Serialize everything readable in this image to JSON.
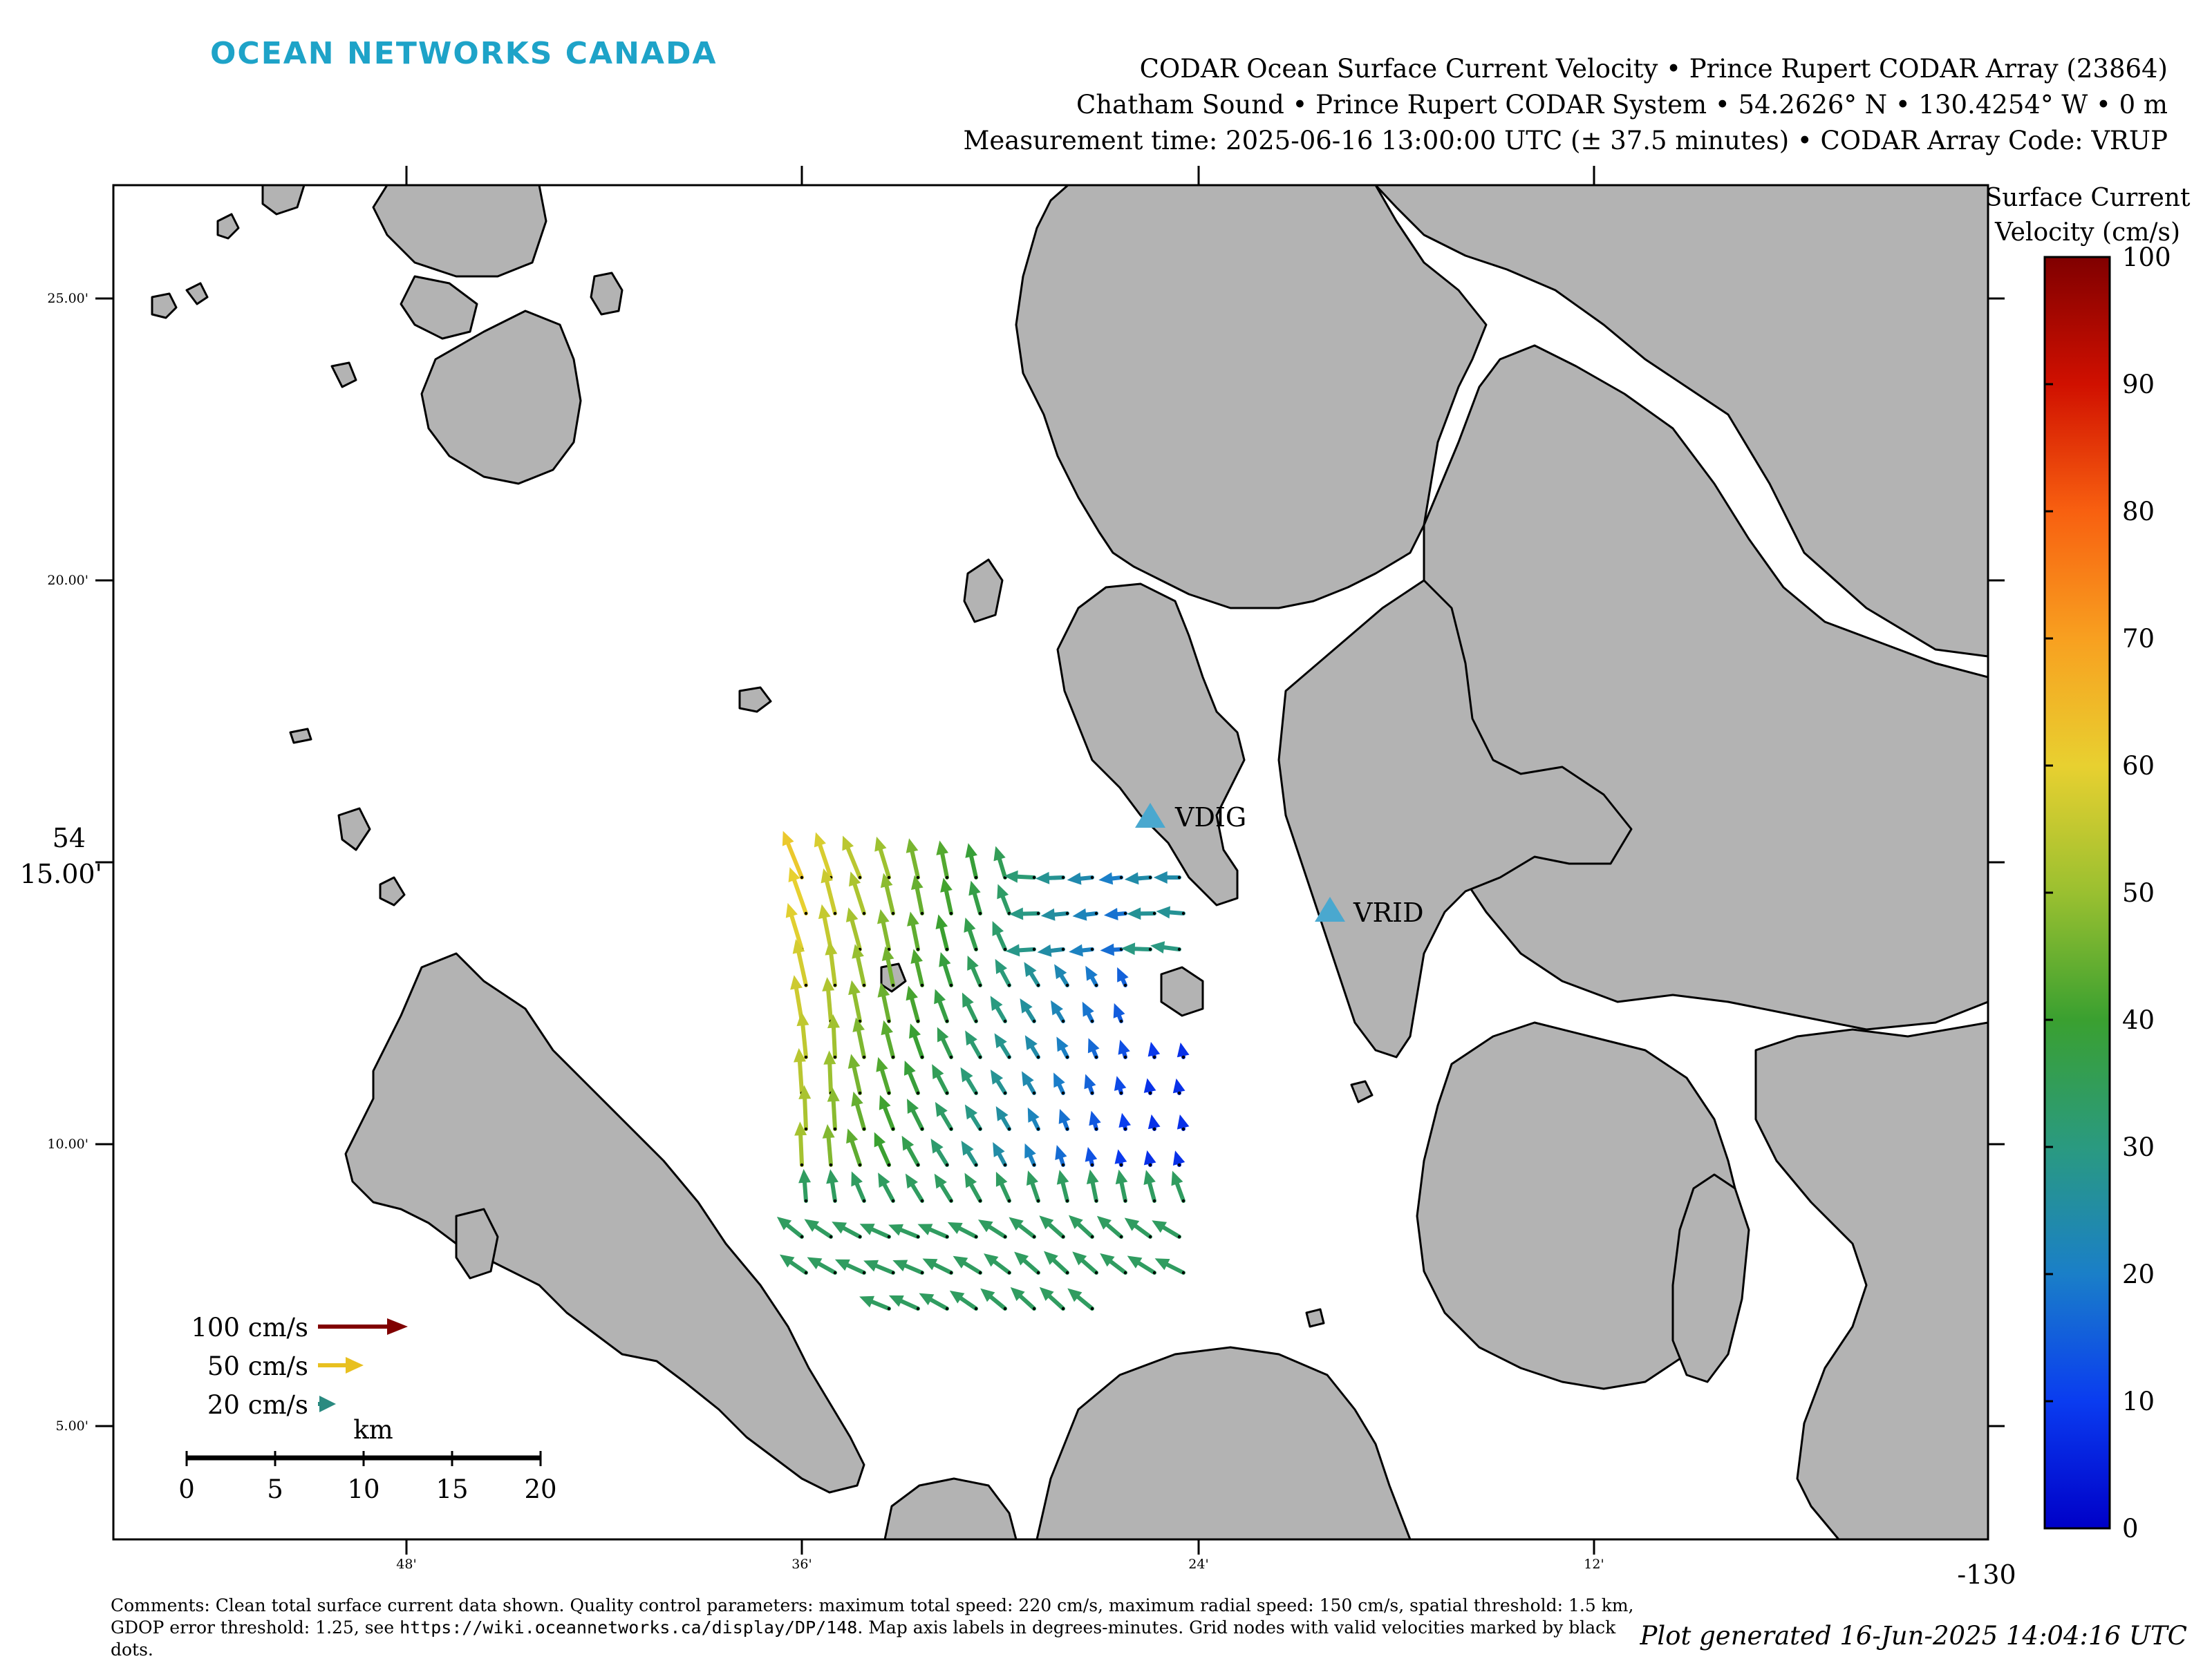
{
  "header": {
    "logo_text": "OCEAN NETWORKS CANADA",
    "title_line1": "CODAR Ocean Surface Current Velocity • Prince Rupert CODAR Array (23864)",
    "title_line2": "Chatham Sound • Prince Rupert CODAR System • 54.2626° N • 130.4254° W • 0 m",
    "title_line3": "Measurement time: 2025-06-16 13:00:00 UTC (± 37.5 minutes) • CODAR Array Code: VRUP"
  },
  "map": {
    "land_color": "#b3b3b3",
    "water_color": "#ffffff",
    "y_tick_labels": [
      "25.00'",
      "20.00'",
      "15.00'",
      "10.00'",
      "5.00'"
    ],
    "y_major_label": "54",
    "x_tick_labels": [
      "48'",
      "36'",
      "24'",
      "12'"
    ],
    "x_major_label": "-130",
    "stations": [
      {
        "code": "VDIG",
        "color": "#4aa8cf"
      },
      {
        "code": "VRID",
        "color": "#4aa8cf"
      }
    ]
  },
  "legend": {
    "arrows": [
      {
        "label": "100 cm/s",
        "speed": 100
      },
      {
        "label": "50 cm/s",
        "speed": 50
      },
      {
        "label": "20 cm/s",
        "speed": 20
      }
    ],
    "scalebar_title": "km",
    "scalebar_ticks": [
      "0",
      "5",
      "10",
      "15",
      "20"
    ]
  },
  "colorbar": {
    "title_line1": "Surface Current",
    "title_line2": "Velocity (cm/s)",
    "ticks": [
      "0",
      "10",
      "20",
      "30",
      "40",
      "50",
      "60",
      "70",
      "80",
      "90",
      "100"
    ],
    "min": 0,
    "max": 100,
    "colormap": [
      "#0000c8",
      "#0a3cf0",
      "#1a7fc8",
      "#2a9a80",
      "#3aa030",
      "#9ac030",
      "#e8d030",
      "#f8a020",
      "#f86010",
      "#d01000",
      "#800000"
    ]
  },
  "footer": {
    "comments_pre": "Comments: Clean total surface current data shown. Quality control parameters: maximum total speed: 220 cm/s, maximum radial speed: 150 cm/s, spatial threshold: 1.5 km, GDOP error threshold: 1.25, see ",
    "comments_url": "https://wiki.oceannetworks.ca/display/DP/148",
    "comments_post": ". Map axis labels in degrees-minutes. Grid nodes with valid velocities marked by black dots.",
    "generated": "Plot generated 16-Jun-2025 14:04:16 UTC"
  }
}
